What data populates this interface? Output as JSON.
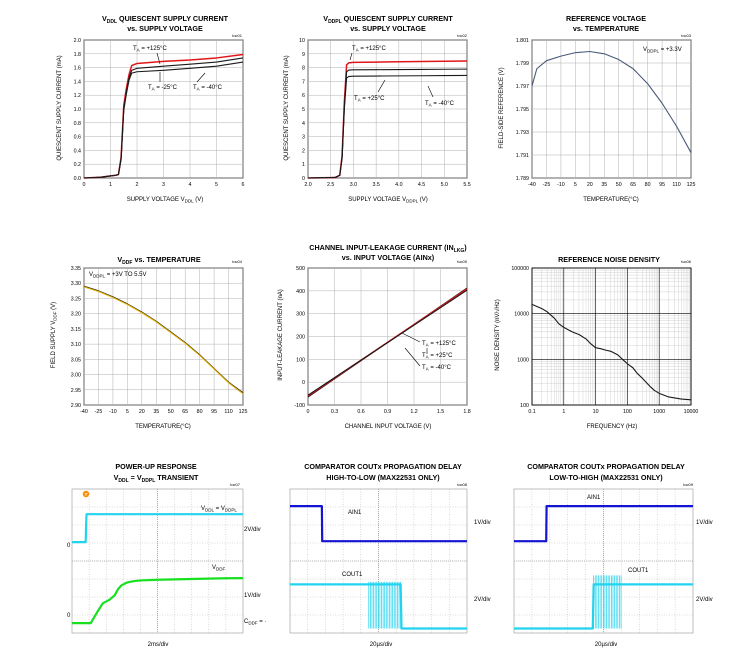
{
  "colors": {
    "red": "#e0161b",
    "black": "#1a1a1a",
    "slate": "#4a5a7a",
    "gold": "#e8b400",
    "scope_cyan": "#22d3ee",
    "scope_blue": "#1414d4",
    "scope_green": "#18e020",
    "scope_bg": "#ffffff",
    "marker_orange": "#ff8a00"
  },
  "panels": {
    "p1": {
      "title1": "VDDL QUIESCENT SUPPLY CURRENT",
      "title2": "vs. SUPPLY VOLTAGE",
      "tag": "toc01",
      "xlabel": "SUPPLY VOLTAGE VDDL (V)",
      "ylabel": "QUIESCENT SUPPLY CURRENT (mA)",
      "ann": [
        "TA = +125°C",
        "TA = -25°C",
        "TA = -40°C"
      ]
    },
    "p2": {
      "title1": "VDDPL QUIESCENT SUPPLY CURRENT",
      "title2": "vs. SUPPLY VOLTAGE",
      "tag": "toc02",
      "xlabel": "SUPPLY VOLTAGE VDDPL (V)",
      "ylabel": "QUIESCENT SUPPLY CURRENT (mA)",
      "ann": [
        "TA = +125°C",
        "TA = +25°C",
        "TA = -40°C"
      ]
    },
    "p3": {
      "title1": "REFERENCE VOLTAGE",
      "title2": "vs. TEMPERATURE",
      "tag": "toc03",
      "xlabel": "TEMPERATURE(°C)",
      "ylabel": "FIELD-SIDE REFERENCE (V)",
      "ann": [
        "VDDPL = +3.3V"
      ]
    },
    "p4": {
      "title1": "VDDF vs. TEMPERATURE",
      "tag": "toc04",
      "xlabel": "TEMPERATURE(°C)",
      "ylabel": "FIELD SUPPLY VDDF (V)",
      "ann": [
        "VDDPL = +3V TO 5.5V"
      ]
    },
    "p5": {
      "title1": "CHANNEL INPUT-LEAKAGE CURRENT (INLKG)",
      "title2": "vs. INPUT VOLTAGE (AINx)",
      "tag": "toc05",
      "xlabel": "CHANNEL INPUT VOLTAGE (V)",
      "ylabel": "INPUT-LEAKAGE CURRENT (nA)",
      "ann": [
        "TA = +125°C",
        "TA = +25°C",
        "TA = -40°C"
      ]
    },
    "p6": {
      "title1": "REFERENCE NOISE DENSITY",
      "tag": "toc06",
      "xlabel": "FREQUENCY (Hz)",
      "ylabel": "NOISE DENSITY (nV/√Hz)"
    },
    "p7": {
      "title1": "POWER-UP RESPONSE",
      "title2": "VDDL = VDDPL TRANSIENT",
      "tag": "toc07",
      "labels": [
        "VDDL = VDDPL",
        "2V/div",
        "VDDF",
        "1V/div",
        "CDDF = "
      ],
      "ground": "0",
      "timebase": "2ms/div"
    },
    "p8": {
      "title1": "COMPARATOR COUTx PROPAGATION DELAY",
      "title2": "HIGH-TO-LOW (MAX22531 ONLY)",
      "tag": "toc08",
      "labels": [
        "AIN1",
        "1V/div",
        "COUT1",
        "2V/div"
      ],
      "timebase": "20µs/div"
    },
    "p9": {
      "title1": "COMPARATOR COUTx PROPAGATION DELAY",
      "title2": "LOW-TO-HIGH (MAX22531 ONLY)",
      "tag": "toc09",
      "labels": [
        "AIN1",
        "1V/div",
        "COUT1",
        "2V/div"
      ],
      "timebase": "20µs/div"
    }
  },
  "chart_data": [
    {
      "type": "line",
      "title": "VDDL QUIESCENT SUPPLY CURRENT vs. SUPPLY VOLTAGE",
      "xlabel": "SUPPLY VOLTAGE VDDL (V)",
      "ylabel": "QUIESCENT SUPPLY CURRENT (mA)",
      "xlim": [
        0,
        6
      ],
      "ylim": [
        0,
        2.0
      ],
      "xticks": [
        "0",
        "1",
        "2",
        "3",
        "4",
        "5",
        "6"
      ],
      "yticks": [
        "0.0",
        "0.2",
        "0.4",
        "0.6",
        "0.8",
        "1.0",
        "1.2",
        "1.4",
        "1.6",
        "1.8",
        "2.0"
      ],
      "grid": true,
      "series": [
        {
          "name": "TA = +125°C",
          "color": "#e0161b",
          "x": [
            0,
            0.6,
            1.0,
            1.2,
            1.3,
            1.4,
            1.5,
            1.6,
            1.7,
            1.8,
            2.0,
            3.0,
            4.0,
            5.0,
            6.0
          ],
          "y": [
            0,
            0.01,
            0.03,
            0.04,
            0.05,
            0.3,
            1.05,
            1.3,
            1.5,
            1.63,
            1.66,
            1.69,
            1.71,
            1.74,
            1.79
          ]
        },
        {
          "name": "TA = -25°C",
          "color": "#1a1a1a",
          "x": [
            0,
            0.6,
            1.0,
            1.2,
            1.3,
            1.4,
            1.5,
            1.6,
            1.7,
            1.8,
            2.0,
            3.0,
            4.0,
            5.0,
            6.0
          ],
          "y": [
            0,
            0.01,
            0.03,
            0.04,
            0.05,
            0.28,
            1.0,
            1.25,
            1.45,
            1.56,
            1.59,
            1.62,
            1.65,
            1.68,
            1.74
          ]
        },
        {
          "name": "TA = -40°C",
          "color": "#1a1a1a",
          "x": [
            0,
            0.6,
            1.0,
            1.2,
            1.3,
            1.4,
            1.5,
            1.6,
            1.7,
            1.8,
            2.0,
            3.0,
            4.0,
            5.0,
            6.0
          ],
          "y": [
            0,
            0.01,
            0.03,
            0.04,
            0.05,
            0.27,
            0.98,
            1.22,
            1.42,
            1.52,
            1.54,
            1.56,
            1.59,
            1.62,
            1.68
          ]
        }
      ]
    },
    {
      "type": "line",
      "title": "VDDPL QUIESCENT SUPPLY CURRENT vs. SUPPLY VOLTAGE",
      "xlabel": "SUPPLY VOLTAGE VDDPL (V)",
      "ylabel": "QUIESCENT SUPPLY CURRENT (mA)",
      "xlim": [
        2.0,
        5.5
      ],
      "ylim": [
        0,
        10
      ],
      "xticks": [
        "2.0",
        "2.5",
        "3.0",
        "3.5",
        "4.0",
        "4.5",
        "5.0",
        "5.5"
      ],
      "yticks": [
        "0",
        "1",
        "2",
        "3",
        "4",
        "5",
        "6",
        "7",
        "8",
        "9",
        "10"
      ],
      "grid": true,
      "series": [
        {
          "name": "TA = +125°C",
          "color": "#e0161b",
          "x": [
            2.0,
            2.6,
            2.7,
            2.75,
            2.8,
            2.85,
            2.9,
            3.0,
            3.5,
            4.0,
            4.5,
            5.0,
            5.5
          ],
          "y": [
            0,
            0.04,
            0.2,
            1.6,
            5.5,
            8.2,
            8.35,
            8.38,
            8.4,
            8.42,
            8.44,
            8.46,
            8.48
          ]
        },
        {
          "name": "TA = +25°C",
          "color": "#1a1a1a",
          "x": [
            2.0,
            2.6,
            2.7,
            2.75,
            2.8,
            2.85,
            2.9,
            3.0,
            3.5,
            4.0,
            4.5,
            5.0,
            5.5
          ],
          "y": [
            0,
            0.04,
            0.2,
            1.5,
            5.2,
            7.7,
            7.82,
            7.84,
            7.85,
            7.86,
            7.87,
            7.88,
            7.89
          ]
        },
        {
          "name": "TA = -40°C",
          "color": "#1a1a1a",
          "x": [
            2.0,
            2.6,
            2.7,
            2.75,
            2.8,
            2.85,
            2.9,
            3.0,
            3.5,
            4.0,
            4.5,
            5.0,
            5.5
          ],
          "y": [
            0,
            0.04,
            0.2,
            1.4,
            5.0,
            7.25,
            7.36,
            7.38,
            7.39,
            7.4,
            7.41,
            7.42,
            7.43
          ]
        }
      ]
    },
    {
      "type": "line",
      "title": "REFERENCE VOLTAGE vs. TEMPERATURE",
      "xlabel": "TEMPERATURE(°C)",
      "ylabel": "FIELD-SIDE REFERENCE (V)",
      "xlim": [
        -40,
        125
      ],
      "ylim": [
        1.789,
        1.801
      ],
      "xticks": [
        "-40",
        "-25",
        "-10",
        "5",
        "20",
        "35",
        "50",
        "65",
        "80",
        "95",
        "110",
        "125"
      ],
      "yticks": [
        "1.789",
        "1.791",
        "1.793",
        "1.795",
        "1.797",
        "1.799",
        "1.801"
      ],
      "grid": true,
      "series": [
        {
          "name": "VDDPL = +3.3V",
          "color": "#4a5a7a",
          "x": [
            -40,
            -35,
            -25,
            -10,
            5,
            20,
            35,
            50,
            65,
            80,
            95,
            110,
            125
          ],
          "y": [
            1.797,
            1.7985,
            1.7992,
            1.7996,
            1.7999,
            1.8,
            1.7998,
            1.7993,
            1.7985,
            1.7972,
            1.7955,
            1.7935,
            1.7912
          ]
        }
      ]
    },
    {
      "type": "line",
      "title": "VDDF vs. TEMPERATURE",
      "xlabel": "TEMPERATURE(°C)",
      "ylabel": "FIELD SUPPLY VDDF (V)",
      "xlim": [
        -40,
        125
      ],
      "ylim": [
        2.9,
        3.35
      ],
      "xticks": [
        "-40",
        "-25",
        "-10",
        "5",
        "20",
        "35",
        "50",
        "65",
        "80",
        "95",
        "110",
        "125"
      ],
      "yticks": [
        "2.90",
        "2.95",
        "3.00",
        "3.05",
        "3.10",
        "3.15",
        "3.20",
        "3.25",
        "3.30",
        "3.35"
      ],
      "grid": true,
      "series": [
        {
          "name": "VDDPL = +3V TO 5.5V",
          "color": "#1a1a1a",
          "x": [
            -40,
            -25,
            -10,
            5,
            20,
            35,
            50,
            65,
            80,
            95,
            110,
            125
          ],
          "y": [
            3.29,
            3.275,
            3.255,
            3.232,
            3.205,
            3.175,
            3.14,
            3.105,
            3.065,
            3.02,
            2.975,
            2.94
          ]
        },
        {
          "name": "",
          "color": "#e8b400",
          "x": [
            -40,
            -25,
            -10,
            5,
            20,
            35,
            50,
            65,
            80,
            95,
            110,
            125
          ],
          "y": [
            3.288,
            3.273,
            3.253,
            3.23,
            3.203,
            3.173,
            3.138,
            3.103,
            3.063,
            3.018,
            2.973,
            2.937
          ]
        }
      ]
    },
    {
      "type": "line",
      "title": "CHANNEL INPUT-LEAKAGE CURRENT (INLKG) vs. INPUT VOLTAGE (AINx)",
      "xlabel": "CHANNEL INPUT VOLTAGE (V)",
      "ylabel": "INPUT-LEAKAGE CURRENT (nA)",
      "xlim": [
        0,
        1.8
      ],
      "ylim": [
        -100,
        500
      ],
      "xticks": [
        "0",
        "0.3",
        "0.6",
        "0.9",
        "1.2",
        "1.5",
        "1.8"
      ],
      "yticks": [
        "-100",
        "0",
        "100",
        "200",
        "300",
        "400",
        "500"
      ],
      "grid": true,
      "series": [
        {
          "name": "TA = +125°C",
          "color": "#1a1a1a",
          "x": [
            0,
            1.8
          ],
          "y": [
            -65,
            412
          ]
        },
        {
          "name": "TA = +25°C",
          "color": "#e0161b",
          "x": [
            0,
            1.8
          ],
          "y": [
            -60,
            408
          ]
        },
        {
          "name": "TA = -40°C",
          "color": "#1a1a1a",
          "x": [
            0,
            1.8
          ],
          "y": [
            -57,
            403
          ]
        }
      ]
    },
    {
      "type": "line",
      "title": "REFERENCE NOISE DENSITY",
      "xlabel": "FREQUENCY (Hz)",
      "ylabel": "NOISE DENSITY (nV/√Hz)",
      "x_scale": "log",
      "y_scale": "log",
      "xlim": [
        0.1,
        10000
      ],
      "ylim": [
        100,
        100000
      ],
      "xticks": [
        "0.1",
        "1",
        "10",
        "100",
        "1000",
        "10000"
      ],
      "yticks": [
        "100",
        "1000",
        "10000",
        "100000"
      ],
      "grid": true,
      "series": [
        {
          "name": "",
          "color": "#1a1a1a",
          "x": [
            0.1,
            0.2,
            0.3,
            0.5,
            0.7,
            1,
            1.5,
            2,
            3,
            5,
            7,
            10,
            15,
            20,
            30,
            50,
            70,
            100,
            150,
            200,
            300,
            500,
            700,
            1000,
            2000,
            5000,
            10000
          ],
          "y": [
            16000,
            13000,
            11000,
            8000,
            6000,
            5000,
            4300,
            3900,
            3500,
            2800,
            2200,
            1800,
            1700,
            1600,
            1500,
            1250,
            1000,
            800,
            650,
            500,
            380,
            260,
            210,
            180,
            150,
            135,
            130
          ]
        }
      ]
    },
    {
      "type": "line",
      "title": "POWER-UP RESPONSE VDDL = VDDPL TRANSIENT",
      "xlabel": "2ms/div",
      "ylabel": "",
      "xlim": [
        0,
        10
      ],
      "ylim": [
        0,
        8
      ],
      "xticks": [
        "0",
        "1",
        "2",
        "3",
        "4",
        "5",
        "6",
        "7",
        "8",
        "9",
        "10"
      ],
      "yticks": [
        "0",
        "1",
        "2",
        "3",
        "4",
        "5",
        "6",
        "7",
        "8"
      ],
      "grid": true,
      "series": [
        {
          "name": "VDDL = VDDPL",
          "color": "#22d3ee",
          "x": [
            0,
            0.8,
            0.82,
            0.85,
            10
          ],
          "y": [
            5.05,
            5.05,
            5.8,
            6.6,
            6.6
          ]
        },
        {
          "name": "VDDF",
          "color": "#18e020",
          "x": [
            0,
            1.1,
            1.25,
            1.5,
            1.8,
            2.2,
            2.5,
            2.7,
            2.9,
            3.2,
            3.6,
            4,
            5,
            6,
            7,
            8,
            9,
            10
          ],
          "y": [
            0.55,
            0.55,
            0.8,
            1.2,
            1.65,
            1.85,
            2.1,
            2.45,
            2.65,
            2.8,
            2.88,
            2.92,
            2.96,
            2.98,
            3,
            3.02,
            3.04,
            3.05
          ]
        }
      ]
    },
    {
      "type": "line",
      "title": "COMPARATOR COUTx PROPAGATION DELAY HIGH-TO-LOW (MAX22531 ONLY)",
      "xlabel": "20µs/div",
      "ylabel": "",
      "xlim": [
        0,
        10
      ],
      "ylim": [
        0,
        8
      ],
      "xticks": [
        "0",
        "1",
        "2",
        "3",
        "4",
        "5",
        "6",
        "7",
        "8",
        "9",
        "10"
      ],
      "yticks": [
        "0",
        "1",
        "2",
        "3",
        "4",
        "5",
        "6",
        "7",
        "8"
      ],
      "grid": true,
      "series": [
        {
          "name": "AIN1",
          "color": "#1414d4",
          "x": [
            0,
            1.8,
            1.82,
            10
          ],
          "y": [
            7.05,
            7.05,
            5.1,
            5.1
          ]
        },
        {
          "name": "COUT1",
          "color": "#22d3ee",
          "x": [
            0,
            4.4,
            4.6,
            6.25,
            6.3,
            10
          ],
          "y": [
            2.7,
            2.7,
            2.7,
            2.7,
            0.25,
            0.25
          ]
        }
      ]
    },
    {
      "type": "line",
      "title": "COMPARATOR COUTx PROPAGATION DELAY LOW-TO-HIGH (MAX22531 ONLY)",
      "xlabel": "20µs/div",
      "ylabel": "",
      "xlim": [
        0,
        10
      ],
      "ylim": [
        0,
        8
      ],
      "xticks": [
        "0",
        "1",
        "2",
        "3",
        "4",
        "5",
        "6",
        "7",
        "8",
        "9",
        "10"
      ],
      "yticks": [
        "0",
        "1",
        "2",
        "3",
        "4",
        "5",
        "6",
        "7",
        "8"
      ],
      "grid": true,
      "series": [
        {
          "name": "AIN1",
          "color": "#1414d4",
          "x": [
            0,
            1.8,
            1.82,
            10
          ],
          "y": [
            5.1,
            5.1,
            7.05,
            7.05
          ]
        },
        {
          "name": "COUT1",
          "color": "#22d3ee",
          "x": [
            0,
            4.4,
            4.45,
            6.05,
            6.1,
            10
          ],
          "y": [
            0.25,
            0.25,
            2.7,
            2.7,
            2.7,
            2.7
          ]
        }
      ]
    }
  ]
}
